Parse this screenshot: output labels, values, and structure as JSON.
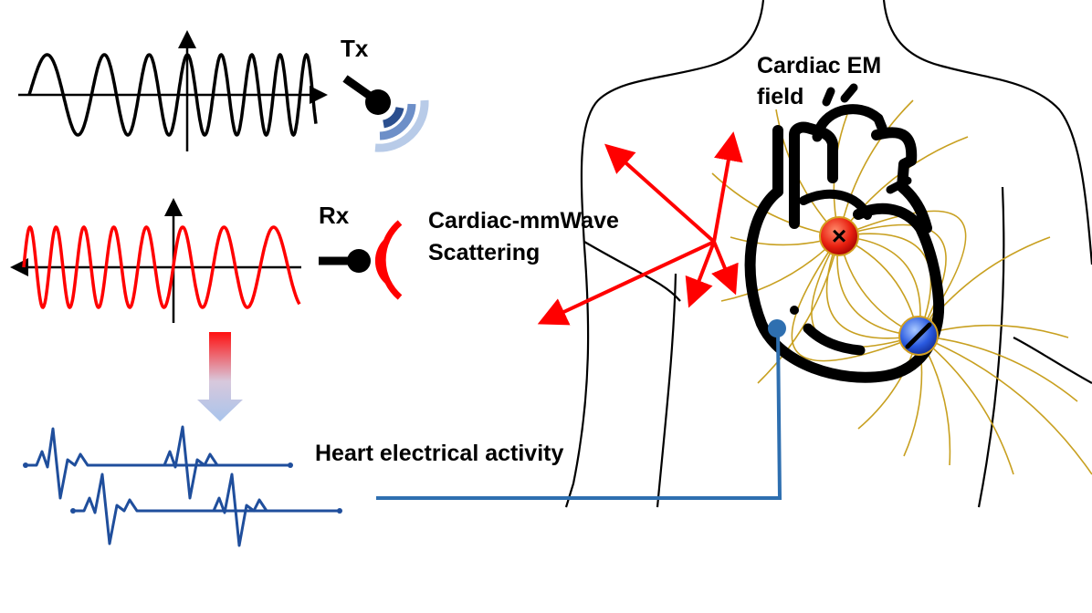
{
  "labels": {
    "tx": "Tx",
    "rx": "Rx",
    "scattering_line1": "Cardiac-mmWave",
    "scattering_line2": "Scattering",
    "em_field_line1": "Cardiac EM",
    "em_field_line2": "field",
    "heart_activity": "Heart electrical activity"
  },
  "symbols": {
    "positive_charge": "×",
    "negative_charge": "−"
  },
  "icons": {
    "tx": "transmitter-antenna-icon",
    "rx": "receiver-antenna-icon",
    "heart": "heart-icon",
    "body": "human-torso-outline"
  },
  "colors": {
    "tx_wave": "#000000",
    "rx_wave": "#ff0000",
    "ecg": "#1f4e9c",
    "field_lines": "#c8a020",
    "scatter_arrows": "#ff0000",
    "electrode_wire": "#2e6fb0",
    "tx_wave_dark": "#2b4f8f",
    "tx_wave_light": "#b8cbe8"
  }
}
